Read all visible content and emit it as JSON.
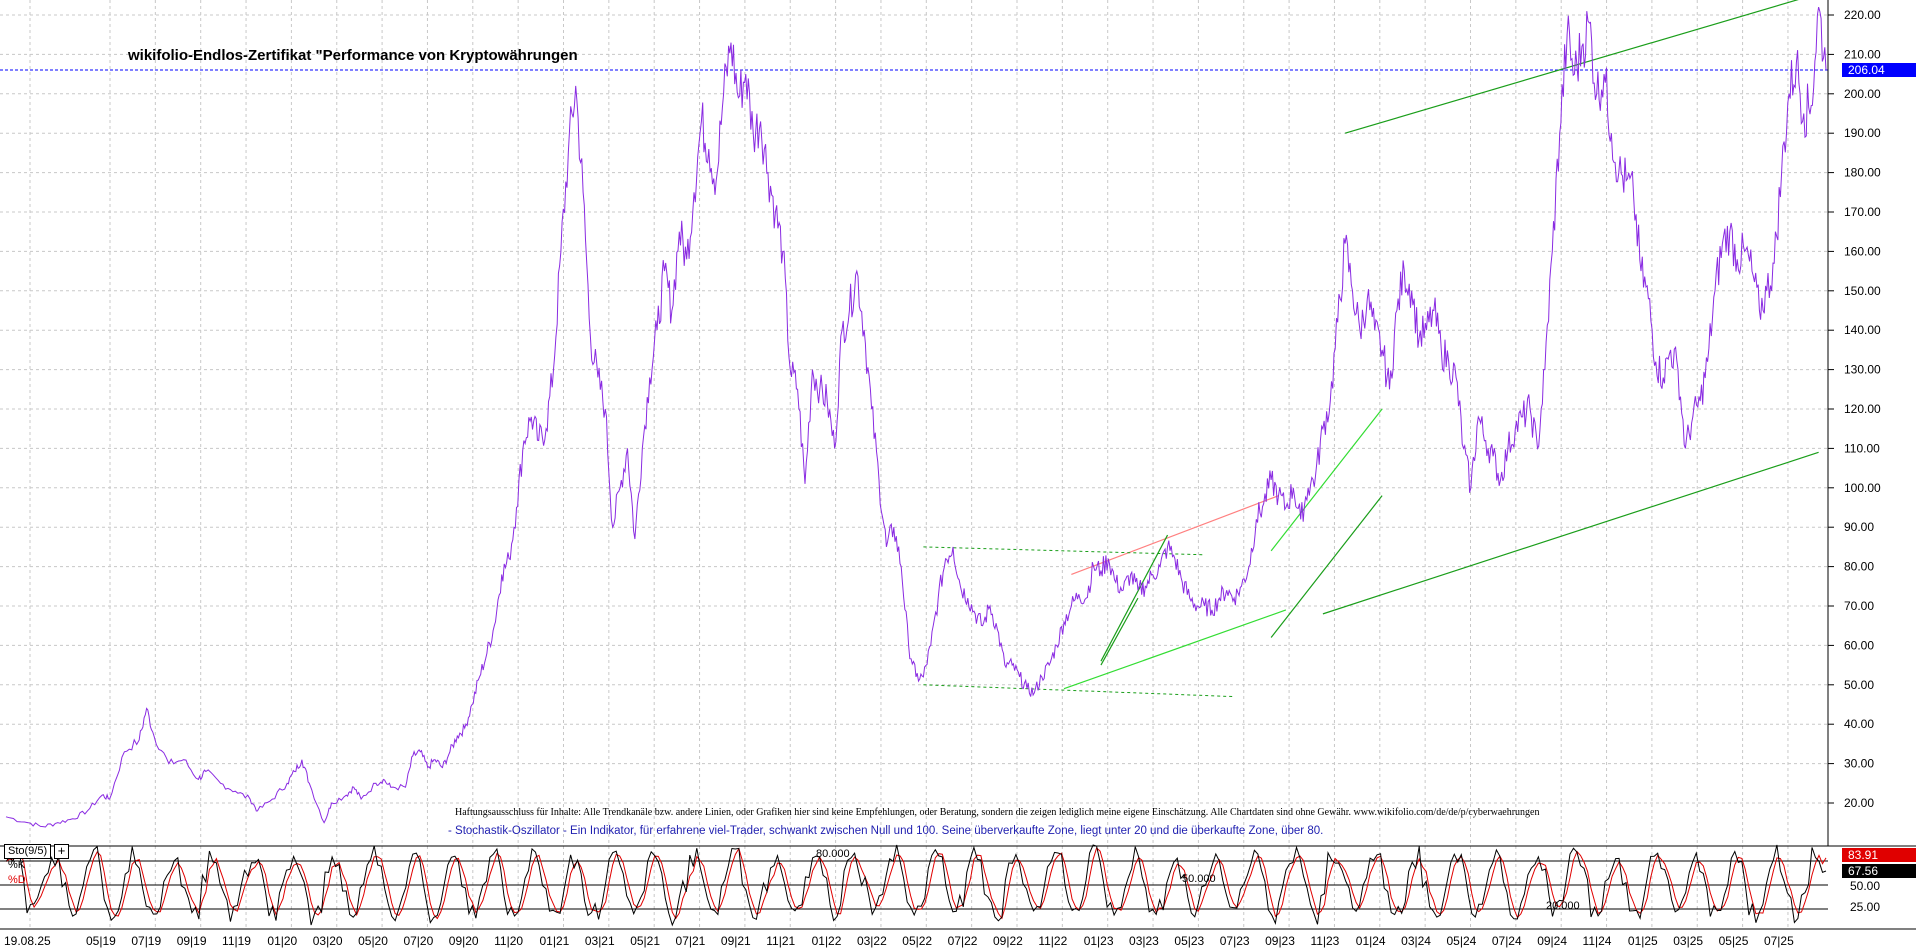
{
  "title": "wikifolio-Endlos-Zertifikat \"Performance von Kryptowährungen",
  "disclaimer": "Haftungsausschluss für Inhalte: Alle Trendkanäle bzw. andere Linien, oder Grafiken hier sind keine Empfehlungen, oder Beratung, sondern die zeigen lediglich meine eigene Einschätzung. Alle Chartdaten sind ohne Gewähr. www.wikifolio.com/de/de/p/cyberwaehrungen",
  "stochastic_description": "- Stochastik-Oszillator - Ein Indikator, für erfahrene viel-Trader, schwankt zwischen Null und 100. Seine überverkaufte Zone, liegt unter 20 und die überkaufte Zone, über 80.",
  "indicator": {
    "name": "Sto(9/5)",
    "plus": "+",
    "k_label": "%K",
    "d_label": "%D",
    "k_value": "67.56",
    "d_value": "83.91",
    "level_80": "80.000",
    "level_50": "50.000",
    "level_20": "20.000",
    "axis_ticks": [
      "50.00",
      "25.00"
    ]
  },
  "current_price": "206.04",
  "colors": {
    "price_line": "#8a2be2",
    "trend_green": "#1a9e1a",
    "trend_light_green": "#33dd33",
    "trend_red": "#ff8080",
    "dashed_green": "#1a9e1a",
    "current_price_line": "#0000ff",
    "current_price_bg": "#0000ff",
    "k_line": "#000000",
    "d_line": "#e00000",
    "grid": "#c8c8c8"
  },
  "chart_data": {
    "type": "line",
    "title": "wikifolio-Endlos-Zertifikat \"Performance von Kryptowährungen",
    "ylim": [
      12,
      224
    ],
    "yticks": [
      20,
      30,
      40,
      50,
      60,
      70,
      80,
      90,
      100,
      110,
      120,
      130,
      140,
      150,
      160,
      170,
      180,
      190,
      200,
      210,
      220
    ],
    "x_tick_labels": [
      "19.08.25",
      "05|19",
      "07|19",
      "09|19",
      "11|19",
      "01|20",
      "03|20",
      "05|20",
      "07|20",
      "09|20",
      "11|20",
      "01|21",
      "03|21",
      "05|21",
      "07|21",
      "09|21",
      "11|21",
      "01|22",
      "03|22",
      "05|22",
      "07|22",
      "09|22",
      "11|22",
      "01|23",
      "03|23",
      "05|23",
      "07|23",
      "09|23",
      "11|23",
      "01|24",
      "03|24",
      "05|24",
      "07|24",
      "09|24",
      "11|24",
      "01|25",
      "03|25",
      "05|25",
      "07|25"
    ],
    "grid": true,
    "series": [
      {
        "values": [
          [
            0,
            16.5
          ],
          [
            3,
            15
          ],
          [
            5,
            14
          ],
          [
            7,
            15
          ],
          [
            9,
            16
          ],
          [
            11,
            18
          ],
          [
            13,
            22
          ],
          [
            14,
            21
          ],
          [
            16,
            33
          ],
          [
            18,
            36
          ],
          [
            19,
            44
          ],
          [
            20,
            37
          ],
          [
            22,
            30
          ],
          [
            24,
            31
          ],
          [
            26,
            26
          ],
          [
            27,
            28
          ],
          [
            29,
            25
          ],
          [
            31,
            23
          ],
          [
            33,
            21
          ],
          [
            34,
            18
          ],
          [
            36,
            21
          ],
          [
            38,
            25
          ],
          [
            39,
            28
          ],
          [
            40,
            31
          ],
          [
            41,
            25
          ],
          [
            43,
            15
          ],
          [
            44,
            20
          ],
          [
            46,
            22
          ],
          [
            47,
            24
          ],
          [
            48,
            21
          ],
          [
            50,
            25
          ],
          [
            51,
            26
          ],
          [
            52,
            24
          ],
          [
            54,
            24
          ],
          [
            55,
            32
          ],
          [
            56,
            33
          ],
          [
            57,
            29
          ],
          [
            58,
            31
          ],
          [
            59,
            29
          ],
          [
            60,
            33
          ],
          [
            61,
            37
          ],
          [
            62,
            39
          ],
          [
            63,
            45
          ],
          [
            64,
            52
          ],
          [
            65,
            58
          ],
          [
            66,
            65
          ],
          [
            67,
            78
          ],
          [
            68,
            82
          ],
          [
            69,
            95
          ],
          [
            70,
            112
          ],
          [
            71,
            118
          ],
          [
            72,
            112
          ],
          [
            73,
            115
          ],
          [
            74,
            130
          ],
          [
            75,
            160
          ],
          [
            76,
            185
          ],
          [
            77,
            202
          ],
          [
            78,
            175
          ],
          [
            79,
            138
          ],
          [
            80,
            128
          ],
          [
            81,
            120
          ],
          [
            82,
            90
          ],
          [
            83,
            100
          ],
          [
            84,
            110
          ],
          [
            85,
            87
          ],
          [
            86,
            110
          ],
          [
            87,
            128
          ],
          [
            88,
            140
          ],
          [
            89,
            155
          ],
          [
            90,
            145
          ],
          [
            91,
            165
          ],
          [
            92,
            158
          ],
          [
            93,
            175
          ],
          [
            94,
            193
          ],
          [
            95,
            186
          ],
          [
            96,
            178
          ],
          [
            97,
            200
          ],
          [
            98,
            213
          ],
          [
            99,
            199
          ],
          [
            100,
            205
          ],
          [
            101,
            190
          ],
          [
            102,
            193
          ],
          [
            103,
            180
          ],
          [
            104,
            170
          ],
          [
            105,
            160
          ],
          [
            106,
            130
          ],
          [
            107,
            125
          ],
          [
            108,
            101
          ],
          [
            109,
            130
          ],
          [
            110,
            125
          ],
          [
            111,
            122
          ],
          [
            112,
            110
          ],
          [
            113,
            140
          ],
          [
            114,
            145
          ],
          [
            115,
            155
          ],
          [
            116,
            140
          ],
          [
            117,
            120
          ],
          [
            118,
            102
          ],
          [
            119,
            85
          ],
          [
            120,
            90
          ],
          [
            121,
            80
          ],
          [
            122,
            60
          ],
          [
            123,
            52
          ],
          [
            124,
            52
          ],
          [
            125,
            60
          ],
          [
            126,
            72
          ],
          [
            127,
            82
          ],
          [
            128,
            85
          ],
          [
            129,
            75
          ],
          [
            130,
            72
          ],
          [
            131,
            68
          ],
          [
            132,
            65
          ],
          [
            133,
            70
          ],
          [
            134,
            64
          ],
          [
            135,
            55
          ],
          [
            136,
            55
          ],
          [
            137,
            52
          ],
          [
            138,
            49
          ],
          [
            139,
            48
          ],
          [
            140,
            52
          ],
          [
            141,
            55
          ],
          [
            142,
            60
          ],
          [
            143,
            66
          ],
          [
            144,
            70
          ],
          [
            145,
            73
          ],
          [
            146,
            72
          ],
          [
            147,
            80
          ],
          [
            148,
            79
          ],
          [
            149,
            82
          ],
          [
            150,
            76
          ],
          [
            151,
            74
          ],
          [
            152,
            78
          ],
          [
            153,
            74
          ],
          [
            154,
            75
          ],
          [
            155,
            78
          ],
          [
            156,
            80
          ],
          [
            157,
            85
          ],
          [
            158,
            82
          ],
          [
            159,
            76
          ],
          [
            160,
            72
          ],
          [
            161,
            70
          ],
          [
            162,
            70
          ],
          [
            163,
            69
          ],
          [
            164,
            72
          ],
          [
            165,
            74
          ],
          [
            166,
            72
          ],
          [
            167,
            75
          ],
          [
            168,
            80
          ],
          [
            169,
            92
          ],
          [
            170,
            96
          ],
          [
            171,
            102
          ],
          [
            172,
            98
          ],
          [
            173,
            95
          ],
          [
            174,
            100
          ],
          [
            175,
            92
          ],
          [
            176,
            100
          ],
          [
            177,
            103
          ],
          [
            178,
            115
          ],
          [
            179,
            122
          ],
          [
            180,
            142
          ],
          [
            181,
            162
          ],
          [
            182,
            150
          ],
          [
            183,
            140
          ],
          [
            184,
            148
          ],
          [
            185,
            140
          ],
          [
            186,
            135
          ],
          [
            187,
            125
          ],
          [
            188,
            145
          ],
          [
            189,
            155
          ],
          [
            190,
            150
          ],
          [
            191,
            138
          ],
          [
            192,
            140
          ],
          [
            193,
            145
          ],
          [
            194,
            135
          ],
          [
            195,
            132
          ],
          [
            196,
            128
          ],
          [
            197,
            110
          ],
          [
            198,
            100
          ],
          [
            199,
            118
          ],
          [
            200,
            112
          ],
          [
            201,
            108
          ],
          [
            202,
            102
          ],
          [
            203,
            110
          ],
          [
            204,
            115
          ],
          [
            205,
            118
          ],
          [
            206,
            120
          ],
          [
            207,
            110
          ],
          [
            208,
            130
          ],
          [
            209,
            160
          ],
          [
            210,
            190
          ],
          [
            211,
            215
          ],
          [
            212,
            205
          ],
          [
            213,
            212
          ],
          [
            214,
            218
          ],
          [
            215,
            200
          ],
          [
            216,
            205
          ],
          [
            217,
            190
          ],
          [
            218,
            180
          ],
          [
            219,
            178
          ],
          [
            220,
            174
          ],
          [
            221,
            155
          ],
          [
            222,
            148
          ],
          [
            223,
            132
          ],
          [
            224,
            128
          ],
          [
            225,
            135
          ],
          [
            226,
            130
          ],
          [
            227,
            110
          ],
          [
            228,
            118
          ],
          [
            229,
            122
          ],
          [
            230,
            132
          ],
          [
            231,
            150
          ],
          [
            232,
            162
          ],
          [
            233,
            165
          ],
          [
            234,
            158
          ],
          [
            235,
            160
          ],
          [
            236,
            155
          ],
          [
            237,
            145
          ],
          [
            238,
            150
          ],
          [
            239,
            157
          ],
          [
            240,
            180
          ],
          [
            241,
            200
          ],
          [
            242,
            208
          ],
          [
            243,
            195
          ],
          [
            244,
            197
          ],
          [
            245,
            222
          ],
          [
            246,
            206
          ]
        ]
      }
    ],
    "annotations": {
      "current_price_label": "206.04"
    }
  }
}
